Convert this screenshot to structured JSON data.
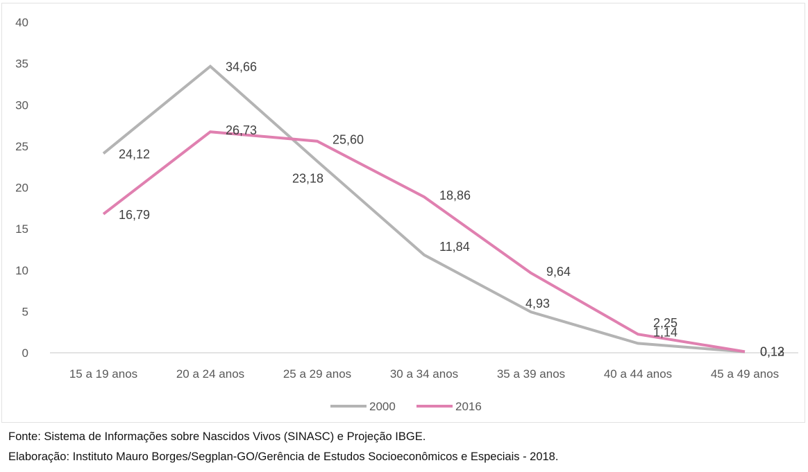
{
  "chart_data": {
    "type": "line",
    "categories": [
      "15 a 19 anos",
      "20 a 24 anos",
      "25 a 29 anos",
      "30 a 34 anos",
      "35 a 39 anos",
      "40 a 44 anos",
      "45 a 49 anos"
    ],
    "series": [
      {
        "name": "2000",
        "color": "#b4b4b4",
        "values": [
          24.12,
          34.66,
          23.18,
          11.84,
          4.93,
          1.14,
          0.12
        ],
        "value_labels": [
          "24,12",
          "34,66",
          "23,18",
          "11,84",
          "4,93",
          "1,14",
          "0,12"
        ]
      },
      {
        "name": "2016",
        "color": "#e080b0",
        "values": [
          16.79,
          26.73,
          25.6,
          18.86,
          9.64,
          2.25,
          0.13
        ],
        "value_labels": [
          "16,79",
          "26,73",
          "25,60",
          "18,86",
          "9,64",
          "2,25",
          "0,13"
        ]
      }
    ],
    "ylim": [
      0,
      40
    ],
    "y_ticks": [
      "0",
      "5",
      "10",
      "15",
      "20",
      "25",
      "30",
      "35",
      "40"
    ],
    "grid": false,
    "legend_position": "bottom",
    "title": "",
    "xlabel": "",
    "ylabel": ""
  },
  "footnotes": {
    "source": "Fonte: Sistema de Informações sobre Nascidos Vivos (SINASC) e Projeção IBGE.",
    "credit": "Elaboração: Instituto Mauro Borges/Segplan-GO/Gerência de Estudos Socioeconômicos e Especiais - 2018."
  }
}
